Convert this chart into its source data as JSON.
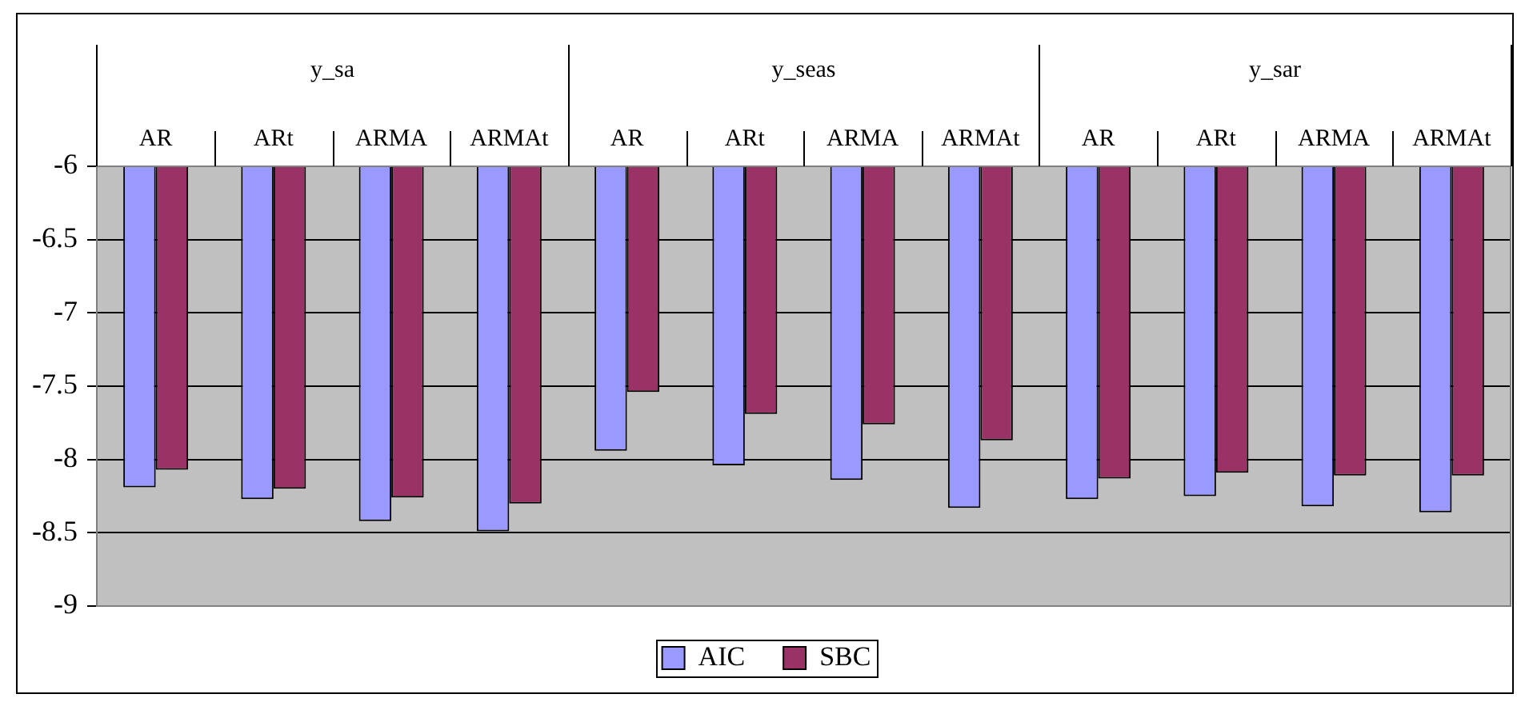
{
  "chart_data": {
    "type": "bar",
    "categories": [
      "AR",
      "ARt",
      "ARMA",
      "ARMAt",
      "AR",
      "ARt",
      "ARMA",
      "ARMAt",
      "AR",
      "ARt",
      "ARMA",
      "ARMAt"
    ],
    "annotations": [
      "y_sa",
      "y_seas",
      "y_sar"
    ],
    "series": [
      {
        "name": "AIC",
        "color": "#9999ff",
        "values": [
          -8.19,
          -8.27,
          -8.42,
          -8.49,
          -7.94,
          -8.04,
          -8.14,
          -8.33,
          -8.27,
          -8.25,
          -8.32,
          -8.36
        ]
      },
      {
        "name": "SBC",
        "color": "#993366",
        "values": [
          -8.07,
          -8.2,
          -8.26,
          -8.3,
          -7.54,
          -7.69,
          -7.76,
          -7.87,
          -8.13,
          -8.09,
          -8.11,
          -8.11
        ]
      }
    ],
    "ylim": [
      -9,
      -6
    ],
    "yticks": [
      -9,
      -8.5,
      -8,
      -7.5,
      -7,
      -6.5,
      -6
    ],
    "grid": "y",
    "legend": "bottom"
  }
}
